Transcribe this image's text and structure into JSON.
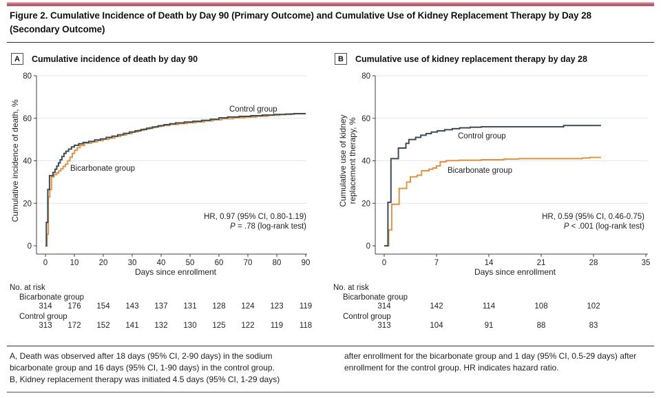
{
  "page": {
    "figure_title_lines": [
      "Figure 2. Cumulative Incidence of Death by Day 90 (Primary Outcome) and Cumulative Use of Kidney Replacement Therapy by Day 28",
      "(Secondary Outcome)"
    ],
    "accent_colors": {
      "bar_light": "#dfa3b0",
      "bar_dark": "#bf5a6d"
    },
    "footnote": {
      "left_lines": [
        "A, Death was observed after 18 days (95% CI, 2-90 days) in the sodium",
        "bicarbonate group and 16 days (95% CI, 1-90 days) in the control group.",
        "B, Kidney replacement therapy was initiated 4.5 days (95% CI, 1-29 days)"
      ],
      "right_lines": [
        "after enrollment for the bicarbonate group and 1 day (95% CI, 0.5-29 days) after",
        "enrollment for the control group. HR indicates hazard ratio."
      ]
    }
  },
  "chart_data": [
    {
      "type": "line",
      "subtype": "kaplan-meier-step",
      "panel_letter": "A",
      "title": "Cumulative incidence of death by day 90",
      "xlabel": "Days since enrollment",
      "ylabel_lines": [
        "Cumulative incidence of death, %"
      ],
      "xlim": [
        0,
        90
      ],
      "ylim": [
        0,
        80
      ],
      "xticks": [
        0,
        10,
        20,
        30,
        40,
        50,
        60,
        70,
        80,
        90
      ],
      "yticks": [
        0,
        20,
        40,
        60,
        80
      ],
      "grid": "horizontal-light",
      "curve_end_day": 90,
      "series": [
        {
          "name": "Bicarbonate group",
          "color": "#e4923e",
          "points": [
            [
              0,
              0
            ],
            [
              0.55,
              5.5
            ],
            [
              1,
              23
            ],
            [
              1.5,
              26.5
            ],
            [
              2.1,
              32.5
            ],
            [
              3,
              33.5
            ],
            [
              3.9,
              34.3
            ],
            [
              4.6,
              35.2
            ],
            [
              5.3,
              36.2
            ],
            [
              6.1,
              37.3
            ],
            [
              6.9,
              38.4
            ],
            [
              7.7,
              40
            ],
            [
              8.5,
              41.7
            ],
            [
              9.3,
              43.5
            ],
            [
              10.1,
              45
            ],
            [
              11,
              46.2
            ],
            [
              12,
              47.2
            ],
            [
              13.5,
              48.3
            ],
            [
              16,
              48.9
            ],
            [
              18,
              49.5
            ],
            [
              20,
              50.1
            ],
            [
              22,
              50.7
            ],
            [
              24,
              51.4
            ],
            [
              26,
              52.1
            ],
            [
              28,
              52.8
            ],
            [
              30,
              53.6
            ],
            [
              32,
              54.3
            ],
            [
              34,
              55
            ],
            [
              36,
              55.6
            ],
            [
              38,
              56.1
            ],
            [
              40,
              56.6
            ],
            [
              43,
              57.1
            ],
            [
              46,
              57.5
            ],
            [
              49,
              57.9
            ],
            [
              52,
              58.3
            ],
            [
              55,
              58.8
            ],
            [
              58,
              59.3
            ],
            [
              61,
              59.8
            ],
            [
              65,
              60.2
            ],
            [
              69,
              60.6
            ],
            [
              73,
              61
            ],
            [
              77,
              61.4
            ],
            [
              81,
              61.8
            ],
            [
              85,
              62.1
            ]
          ]
        },
        {
          "name": "Control group",
          "color": "#3b4c56",
          "points": [
            [
              0,
              0
            ],
            [
              0.3,
              11
            ],
            [
              0.8,
              26.5
            ],
            [
              1.4,
              33
            ],
            [
              2.6,
              34.5
            ],
            [
              3.3,
              36
            ],
            [
              3.9,
              37.5
            ],
            [
              4.5,
              39
            ],
            [
              5.1,
              40.5
            ],
            [
              5.7,
              42
            ],
            [
              6.4,
              43.5
            ],
            [
              7.1,
              44.5
            ],
            [
              8,
              45.5
            ],
            [
              9,
              46.5
            ],
            [
              10,
              47.3
            ],
            [
              11.5,
              48
            ],
            [
              13,
              48.6
            ],
            [
              15,
              49.1
            ],
            [
              17,
              49.8
            ],
            [
              19,
              50.3
            ],
            [
              21,
              51
            ],
            [
              23,
              51.6
            ],
            [
              25,
              52.2
            ],
            [
              27,
              52.9
            ],
            [
              29,
              53.5
            ],
            [
              31,
              54.1
            ],
            [
              33,
              54.7
            ],
            [
              35,
              55.3
            ],
            [
              37,
              55.9
            ],
            [
              39,
              56.5
            ],
            [
              41,
              57
            ],
            [
              43,
              57.4
            ],
            [
              45,
              57.8
            ],
            [
              48,
              58.2
            ],
            [
              51,
              58.6
            ],
            [
              54,
              59
            ],
            [
              57,
              59.5
            ],
            [
              60,
              60.2
            ],
            [
              63,
              60.6
            ],
            [
              67,
              60.9
            ],
            [
              71,
              61.2
            ],
            [
              75,
              61.5
            ],
            [
              79,
              61.8
            ],
            [
              83,
              62
            ],
            [
              86,
              62.2
            ]
          ]
        }
      ],
      "annotation": {
        "hr": "HR, 0.97 (95% CI, 0.80-1.19)",
        "p_italic": "P",
        "p_rest": " = .78 (log-rank test)"
      },
      "risk_table": {
        "heading": "No. at risk",
        "at_days": [
          0,
          10,
          20,
          30,
          40,
          50,
          60,
          70,
          80,
          90
        ],
        "rows": [
          {
            "label": "Bicarbonate group",
            "values": [
              314,
              176,
              154,
              143,
              137,
              131,
              128,
              124,
              123,
              119
            ]
          },
          {
            "label": "Control group",
            "values": [
              313,
              172,
              152,
              141,
              132,
              130,
              125,
              122,
              119,
              118
            ]
          }
        ]
      }
    },
    {
      "type": "line",
      "subtype": "kaplan-meier-step",
      "panel_letter": "B",
      "title": "Cumulative use of kidney replacement therapy by day 28",
      "xlabel": "Days since enrollment",
      "ylabel_lines": [
        "Cumulative use of kidney",
        "replacement therapy, %"
      ],
      "xlim": [
        0,
        35
      ],
      "ylim": [
        0,
        80
      ],
      "xticks": [
        0,
        7,
        14,
        21,
        28,
        35
      ],
      "yticks": [
        0,
        20,
        40,
        60,
        80
      ],
      "grid": "horizontal-light",
      "curve_end_day": 29,
      "series": [
        {
          "name": "Bicarbonate group",
          "color": "#e4923e",
          "points": [
            [
              0,
              0
            ],
            [
              0.6,
              7.5
            ],
            [
              1,
              19.5
            ],
            [
              2,
              27
            ],
            [
              3,
              30
            ],
            [
              3.5,
              32.5
            ],
            [
              4.4,
              33.2
            ],
            [
              5,
              35.3
            ],
            [
              6,
              36
            ],
            [
              6.5,
              36.6
            ],
            [
              7,
              37.6
            ],
            [
              7.5,
              39.5
            ],
            [
              8.3,
              40.1
            ],
            [
              10,
              40.3
            ],
            [
              13,
              40.5
            ],
            [
              16,
              40.8
            ],
            [
              18,
              41
            ],
            [
              26.5,
              41.3
            ],
            [
              27.5,
              41.6
            ]
          ]
        },
        {
          "name": "Control group",
          "color": "#3b4c56",
          "points": [
            [
              0,
              0
            ],
            [
              0.5,
              20.5
            ],
            [
              0.9,
              41
            ],
            [
              1.9,
              46
            ],
            [
              2.9,
              48.2
            ],
            [
              3.3,
              50
            ],
            [
              4.2,
              51
            ],
            [
              4.9,
              52
            ],
            [
              5.6,
              52.8
            ],
            [
              6.3,
              53.5
            ],
            [
              7.1,
              54.1
            ],
            [
              8.1,
              54.6
            ],
            [
              9.1,
              55.1
            ],
            [
              10.1,
              55.5
            ],
            [
              11.5,
              55.8
            ],
            [
              13,
              56
            ],
            [
              24,
              56.6
            ]
          ]
        }
      ],
      "annotation": {
        "hr": "HR, 0.59 (95% CI, 0.46-0.75)",
        "p_italic": "P",
        "p_rest": " < .001 (log-rank test)"
      },
      "risk_table": {
        "heading": "No. at risk",
        "at_days": [
          0,
          7,
          14,
          21,
          28
        ],
        "rows": [
          {
            "label": "Bicarbonate group",
            "values": [
              314,
              142,
              114,
              108,
              102
            ]
          },
          {
            "label": "Control group",
            "values": [
              313,
              104,
              91,
              88,
              83
            ]
          }
        ]
      }
    }
  ]
}
